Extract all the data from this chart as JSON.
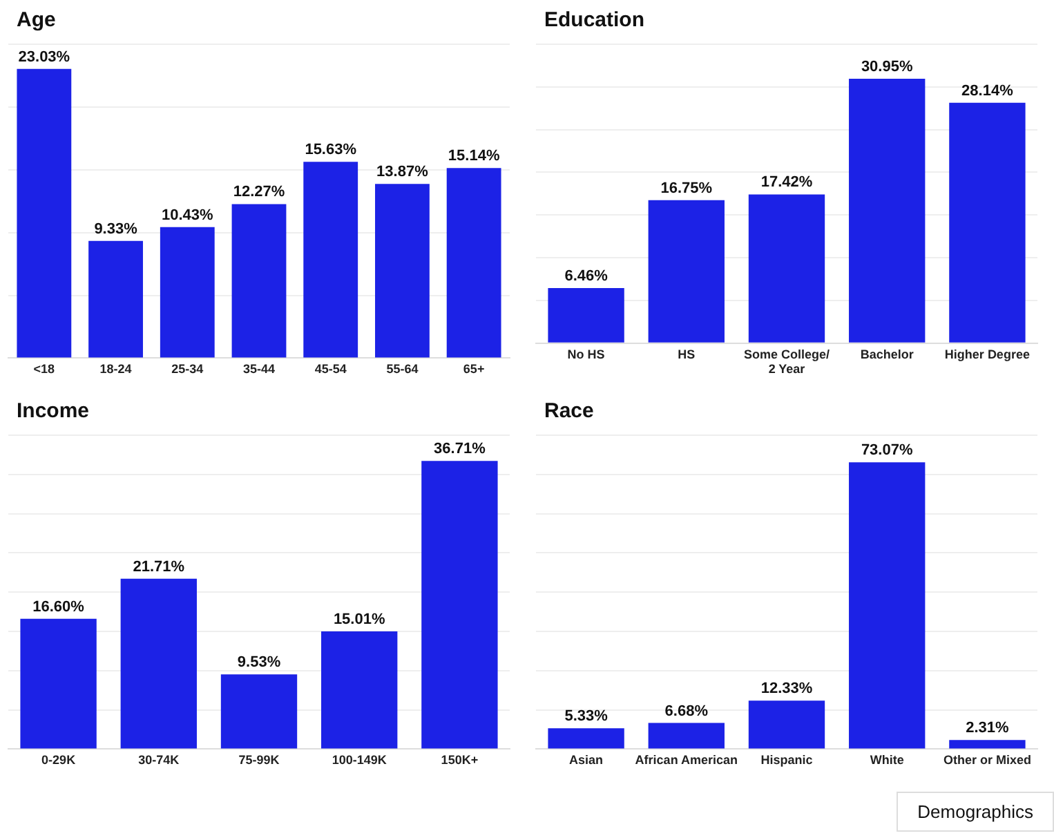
{
  "chart_data": [
    {
      "type": "bar",
      "title": "Age",
      "categories": [
        "<18",
        "18-24",
        "25-34",
        "35-44",
        "45-54",
        "55-64",
        "65+"
      ],
      "values": [
        23.03,
        9.33,
        10.43,
        12.27,
        15.63,
        13.87,
        15.14
      ],
      "value_labels": [
        "23.03%",
        "9.33%",
        "10.43%",
        "12.27%",
        "15.63%",
        "13.87%",
        "15.14%"
      ],
      "color": "#1c22e6",
      "grid": "y",
      "tick_labels": "x",
      "legend": false
    },
    {
      "type": "bar",
      "title": "Education",
      "categories": [
        "No HS",
        "HS",
        "Some College/ 2 Year",
        "Bachelor",
        "Higher Degree"
      ],
      "values": [
        6.46,
        16.75,
        17.42,
        30.95,
        28.14
      ],
      "value_labels": [
        "6.46%",
        "16.75%",
        "17.42%",
        "30.95%",
        "28.14%"
      ],
      "color": "#1c22e6",
      "grid": "y",
      "tick_labels": "x",
      "legend": false
    },
    {
      "type": "bar",
      "title": "Income",
      "categories": [
        "0-29K",
        "30-74K",
        "75-99K",
        "100-149K",
        "150K+"
      ],
      "values": [
        16.6,
        21.71,
        9.53,
        15.01,
        36.71
      ],
      "value_labels": [
        "16.60%",
        "21.71%",
        "9.53%",
        "15.01%",
        "36.71%"
      ],
      "color": "#1c22e6",
      "grid": "y",
      "tick_labels": "x",
      "legend": false
    },
    {
      "type": "bar",
      "title": "Race",
      "categories": [
        "Asian",
        "African American",
        "Hispanic",
        "White",
        "Other or Mixed"
      ],
      "values": [
        5.33,
        6.68,
        12.33,
        73.07,
        2.31
      ],
      "value_labels": [
        "5.33%",
        "6.68%",
        "12.33%",
        "73.07%",
        "2.31%"
      ],
      "color": "#1c22e6",
      "grid": "y",
      "tick_labels": "x",
      "legend": false,
      "annotations": [
        "Demographics"
      ]
    }
  ]
}
